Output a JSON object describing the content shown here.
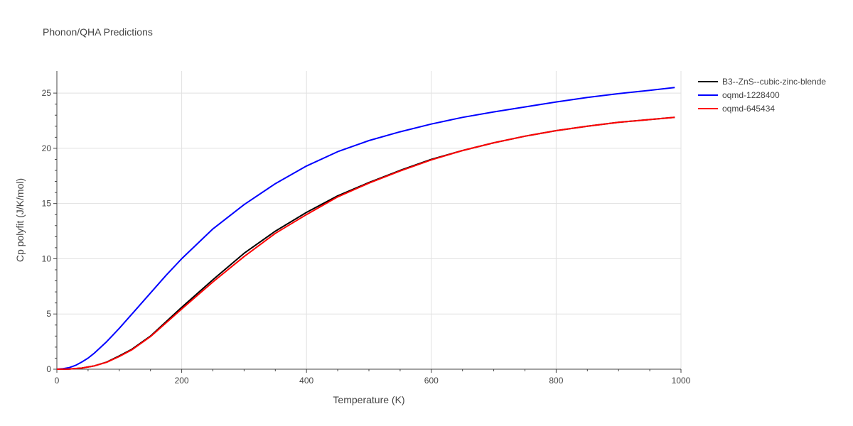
{
  "chart_data": {
    "type": "line",
    "title": "Phonon/QHA Predictions",
    "xlabel": "Temperature (K)",
    "ylabel": "Cp polyfit (J/K/mol)",
    "xlim": [
      0,
      1000
    ],
    "ylim": [
      0,
      27
    ],
    "xticks": [
      0,
      200,
      400,
      600,
      800,
      1000
    ],
    "yticks": [
      0,
      5,
      10,
      15,
      20,
      25
    ],
    "grid": true,
    "legend_position": "top-right",
    "series": [
      {
        "name": "B3--ZnS--cubic-zinc-blende",
        "color": "#000000",
        "x": [
          0,
          20,
          40,
          60,
          80,
          100,
          120,
          150,
          200,
          250,
          300,
          350,
          400,
          450,
          500,
          550,
          600,
          650,
          700,
          750,
          800,
          850,
          900,
          950,
          990
        ],
        "y": [
          0,
          0.02,
          0.1,
          0.3,
          0.65,
          1.2,
          1.8,
          3.0,
          5.6,
          8.1,
          10.5,
          12.5,
          14.2,
          15.7,
          16.9,
          18.0,
          19.0,
          19.8,
          20.5,
          21.1,
          21.6,
          22.0,
          22.35,
          22.6,
          22.8
        ]
      },
      {
        "name": "oqmd-1228400",
        "color": "#0000ff",
        "x": [
          0,
          10,
          20,
          30,
          40,
          50,
          60,
          80,
          100,
          125,
          150,
          175,
          200,
          250,
          300,
          350,
          400,
          450,
          500,
          550,
          600,
          650,
          700,
          750,
          800,
          850,
          900,
          950,
          990
        ],
        "y": [
          0,
          0.05,
          0.15,
          0.35,
          0.65,
          1.0,
          1.45,
          2.5,
          3.7,
          5.3,
          6.9,
          8.5,
          10.0,
          12.7,
          14.9,
          16.8,
          18.4,
          19.7,
          20.7,
          21.5,
          22.2,
          22.8,
          23.3,
          23.75,
          24.2,
          24.6,
          24.95,
          25.25,
          25.5
        ]
      },
      {
        "name": "oqmd-645434",
        "color": "#ff0000",
        "x": [
          0,
          20,
          40,
          60,
          80,
          100,
          120,
          150,
          200,
          250,
          300,
          350,
          400,
          450,
          500,
          550,
          600,
          650,
          700,
          750,
          800,
          850,
          900,
          950,
          990
        ],
        "y": [
          0,
          0.02,
          0.1,
          0.3,
          0.63,
          1.15,
          1.75,
          2.95,
          5.45,
          7.9,
          10.2,
          12.3,
          14.0,
          15.6,
          16.85,
          17.95,
          18.95,
          19.8,
          20.5,
          21.1,
          21.6,
          22.0,
          22.35,
          22.6,
          22.8
        ]
      }
    ]
  }
}
